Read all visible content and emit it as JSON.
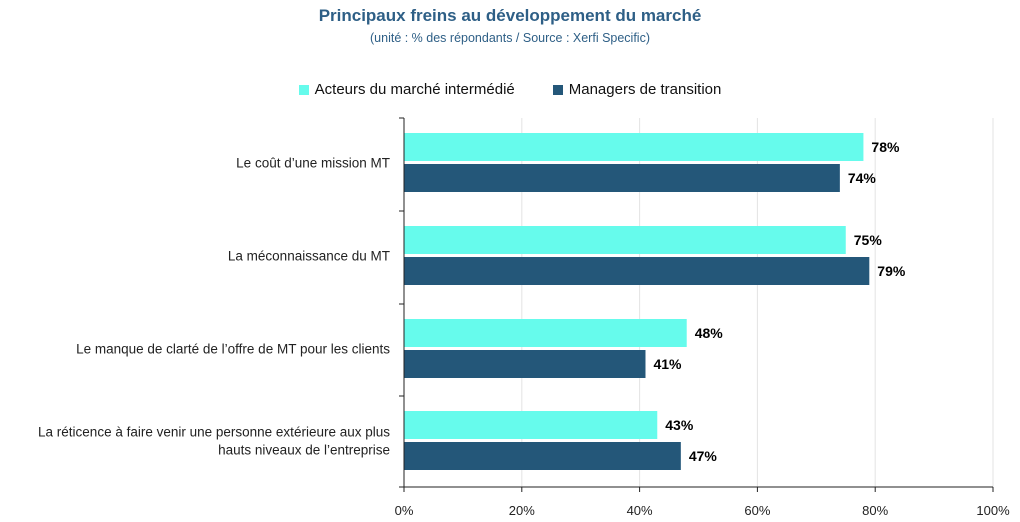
{
  "chart_data": {
    "type": "bar",
    "orientation": "horizontal",
    "title": "Principaux freins au développement du marché",
    "subtitle": "(unité : % des répondants / Source : Xerfi Specific)",
    "categories": [
      [
        "Le coût d’une mission MT"
      ],
      [
        "La méconnaissance du MT"
      ],
      [
        "Le manque de clarté de l’offre de MT pour les clients"
      ],
      [
        "La réticence à faire venir une personne extérieure aux plus",
        "hauts niveaux de l’entreprise"
      ]
    ],
    "series": [
      {
        "name": "Acteurs du marché intermédié",
        "color": "#66fbec",
        "values": [
          78,
          75,
          48,
          43
        ],
        "labels": [
          "78%",
          "75%",
          "48%",
          "43%"
        ]
      },
      {
        "name": "Managers de transition",
        "color": "#245779",
        "values": [
          74,
          79,
          41,
          47
        ],
        "labels": [
          "74%",
          "79%",
          "41%",
          "47%"
        ]
      }
    ],
    "xlim": [
      0,
      100
    ],
    "ticks": [
      0,
      20,
      40,
      60,
      80,
      100
    ],
    "tick_labels": [
      "0%",
      "20%",
      "40%",
      "60%",
      "80%",
      "100%"
    ],
    "grid": true,
    "legend_position": "top"
  }
}
